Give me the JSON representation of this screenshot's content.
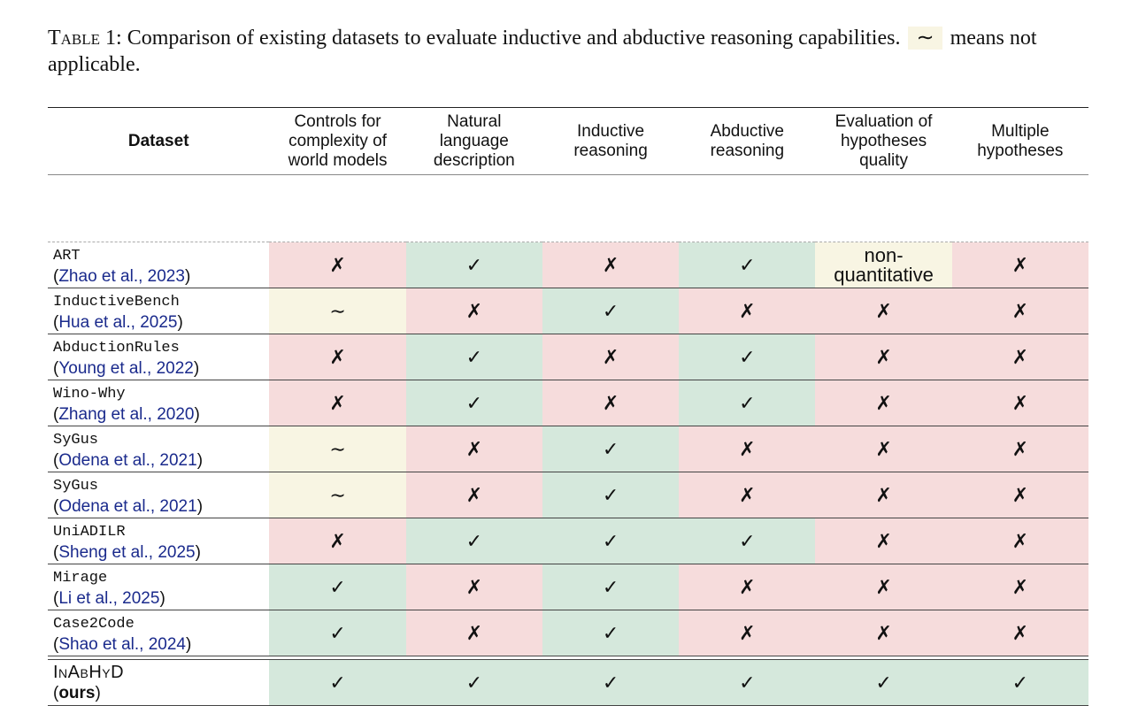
{
  "caption": {
    "label": "Table 1:",
    "text_before": "Comparison of existing datasets to evaluate inductive and abductive reasoning capabilities.",
    "symbol": "∼",
    "text_after": "means not applicable."
  },
  "table": {
    "headers": [
      "Dataset",
      "Controls for complexity of world models",
      "Natural language description",
      "Inductive reasoning",
      "Abductive reasoning",
      "Evaluation of hypotheses quality",
      "Multiple hypotheses"
    ],
    "rows": [
      {
        "name": "ART",
        "cite_author": "Zhao et al.",
        "cite_year": "2023",
        "cells": [
          {
            "v": "✗",
            "k": "no"
          },
          {
            "v": "✓",
            "k": "yes"
          },
          {
            "v": "✗",
            "k": "no"
          },
          {
            "v": "✓",
            "k": "yes"
          },
          {
            "v": "non-quantitative",
            "k": "na"
          },
          {
            "v": "✗",
            "k": "no"
          }
        ]
      },
      {
        "name": "InductiveBench",
        "cite_author": "Hua et al.",
        "cite_year": "2025",
        "cells": [
          {
            "v": "∼",
            "k": "na"
          },
          {
            "v": "✗",
            "k": "no"
          },
          {
            "v": "✓",
            "k": "yes"
          },
          {
            "v": "✗",
            "k": "no"
          },
          {
            "v": "✗",
            "k": "no"
          },
          {
            "v": "✗",
            "k": "no"
          }
        ]
      },
      {
        "name": "AbductionRules",
        "cite_author": "Young et al.",
        "cite_year": "2022",
        "cells": [
          {
            "v": "✗",
            "k": "no"
          },
          {
            "v": "✓",
            "k": "yes"
          },
          {
            "v": "✗",
            "k": "no"
          },
          {
            "v": "✓",
            "k": "yes"
          },
          {
            "v": "✗",
            "k": "no"
          },
          {
            "v": "✗",
            "k": "no"
          }
        ]
      },
      {
        "name": "Wino-Why",
        "cite_author": "Zhang et al.",
        "cite_year": "2020",
        "cells": [
          {
            "v": "✗",
            "k": "no"
          },
          {
            "v": "✓",
            "k": "yes"
          },
          {
            "v": "✗",
            "k": "no"
          },
          {
            "v": "✓",
            "k": "yes"
          },
          {
            "v": "✗",
            "k": "no"
          },
          {
            "v": "✗",
            "k": "no"
          }
        ]
      },
      {
        "name": "SyGus",
        "cite_author": "Odena et al.",
        "cite_year": "2021",
        "cells": [
          {
            "v": "∼",
            "k": "na"
          },
          {
            "v": "✗",
            "k": "no"
          },
          {
            "v": "✓",
            "k": "yes"
          },
          {
            "v": "✗",
            "k": "no"
          },
          {
            "v": "✗",
            "k": "no"
          },
          {
            "v": "✗",
            "k": "no"
          }
        ]
      },
      {
        "name": "SyGus",
        "cite_author": "Odena et al.",
        "cite_year": "2021",
        "cells": [
          {
            "v": "∼",
            "k": "na"
          },
          {
            "v": "✗",
            "k": "no"
          },
          {
            "v": "✓",
            "k": "yes"
          },
          {
            "v": "✗",
            "k": "no"
          },
          {
            "v": "✗",
            "k": "no"
          },
          {
            "v": "✗",
            "k": "no"
          }
        ]
      },
      {
        "name": "UniADILR",
        "cite_author": "Sheng et al.",
        "cite_year": "2025",
        "cells": [
          {
            "v": "✗",
            "k": "no"
          },
          {
            "v": "✓",
            "k": "yes"
          },
          {
            "v": "✓",
            "k": "yes"
          },
          {
            "v": "✓",
            "k": "yes"
          },
          {
            "v": "✗",
            "k": "no"
          },
          {
            "v": "✗",
            "k": "no"
          }
        ]
      },
      {
        "name": "Mirage",
        "cite_author": "Li et al.",
        "cite_year": "2025",
        "cells": [
          {
            "v": "✓",
            "k": "yes"
          },
          {
            "v": "✗",
            "k": "no"
          },
          {
            "v": "✓",
            "k": "yes"
          },
          {
            "v": "✗",
            "k": "no"
          },
          {
            "v": "✗",
            "k": "no"
          },
          {
            "v": "✗",
            "k": "no"
          }
        ]
      },
      {
        "name": "Case2Code",
        "cite_author": "Shao et al.",
        "cite_year": "2024",
        "cells": [
          {
            "v": "✓",
            "k": "yes"
          },
          {
            "v": "✗",
            "k": "no"
          },
          {
            "v": "✓",
            "k": "yes"
          },
          {
            "v": "✗",
            "k": "no"
          },
          {
            "v": "✗",
            "k": "no"
          },
          {
            "v": "✗",
            "k": "no"
          }
        ]
      }
    ],
    "ours": {
      "name": "InAbHyD",
      "note": "ours",
      "cells": [
        {
          "v": "✓",
          "k": "yes"
        },
        {
          "v": "✓",
          "k": "yes"
        },
        {
          "v": "✓",
          "k": "yes"
        },
        {
          "v": "✓",
          "k": "yes"
        },
        {
          "v": "✓",
          "k": "yes"
        },
        {
          "v": "✓",
          "k": "yes"
        }
      ]
    }
  },
  "colors": {
    "positive": "#d5e8dc",
    "negative": "#f6dcdc",
    "not_applicable": "#f8f5e3",
    "citation": "#1a2a8c"
  }
}
